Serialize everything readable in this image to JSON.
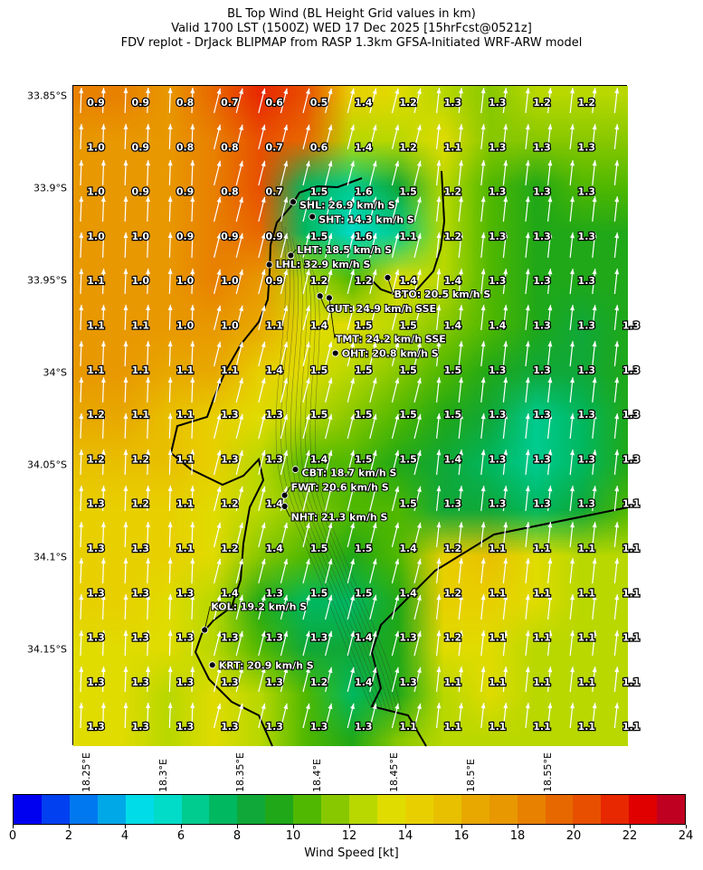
{
  "title": {
    "line1": "BL Top Wind (BL Height Grid values in km)",
    "line2": "Valid 1700 LST (1500Z) WED 17 Dec 2025 [15hrFcst@0521z]",
    "line3": "FDV replot - DrJack BLIPMAP from RASP 1.3km GFSA-Initiated WRF-ARW model"
  },
  "chart_data": {
    "type": "heatmap",
    "xlabel": "",
    "ylabel": "",
    "lat_ticks": [
      "33.85°S",
      "33.9°S",
      "33.95°S",
      "34°S",
      "34.05°S",
      "34.1°S",
      "34.15°S"
    ],
    "lat_values": [
      33.85,
      33.9,
      33.95,
      34.0,
      34.05,
      34.1,
      34.15
    ],
    "lon_ticks": [
      "18.25°E",
      "18.3°E",
      "18.35°E",
      "18.4°E",
      "18.45°E",
      "18.5°E",
      "18.55°E"
    ],
    "lon_values": [
      18.25,
      18.3,
      18.35,
      18.4,
      18.45,
      18.5,
      18.55
    ],
    "wind_direction": "S",
    "wind_speed_kt_grid": [
      [
        18,
        18,
        17,
        19,
        21,
        20,
        14,
        13,
        12,
        11,
        12,
        12,
        12
      ],
      [
        17,
        17,
        17,
        18,
        20,
        19,
        12,
        12,
        13,
        11,
        11,
        11,
        11
      ],
      [
        17,
        17,
        17,
        18,
        20,
        7,
        6,
        8,
        12,
        10,
        9,
        10,
        10
      ],
      [
        17,
        17,
        17,
        18,
        19,
        7,
        5,
        6,
        12,
        10,
        9,
        9,
        9
      ],
      [
        17,
        17,
        17,
        18,
        17,
        12,
        10,
        13,
        12,
        10,
        9,
        9,
        9
      ],
      [
        17,
        17,
        17,
        17,
        16,
        13,
        13,
        12,
        11,
        10,
        9,
        8,
        9
      ],
      [
        17,
        17,
        16,
        16,
        14,
        13,
        12,
        11,
        10,
        9,
        8,
        8,
        9
      ],
      [
        16,
        16,
        15,
        14,
        13,
        12,
        11,
        10,
        9,
        8,
        6,
        7,
        9
      ],
      [
        15,
        15,
        15,
        14,
        12,
        10,
        10,
        9,
        8,
        7,
        6,
        7,
        9
      ],
      [
        14,
        14,
        14,
        13,
        12,
        11,
        10,
        10,
        8,
        8,
        7,
        8,
        10
      ],
      [
        14,
        14,
        14,
        13,
        11,
        10,
        9,
        10,
        14,
        15,
        13,
        12,
        12
      ],
      [
        14,
        14,
        13,
        12,
        9,
        7,
        7,
        9,
        14,
        14,
        13,
        12,
        12
      ],
      [
        13,
        13,
        13,
        12,
        10,
        8,
        8,
        9,
        13,
        13,
        12,
        12,
        12
      ],
      [
        13,
        13,
        12,
        13,
        12,
        10,
        7,
        9,
        12,
        13,
        12,
        12,
        12
      ],
      [
        13,
        13,
        12,
        13,
        12,
        10,
        9,
        11,
        12,
        12,
        12,
        12,
        12
      ]
    ],
    "bl_height_km_grid": [
      [
        "0.9",
        "0.9",
        "0.8",
        "0.7",
        "0.6",
        "0.5",
        "1.4",
        "1.2",
        "1.3",
        "1.3",
        "1.2",
        "1.2",
        null
      ],
      [
        "1.0",
        "0.9",
        "0.8",
        "0.8",
        "0.7",
        "0.6",
        "1.4",
        "1.2",
        "1.1",
        "1.3",
        "1.3",
        "1.3",
        null
      ],
      [
        "1.0",
        "0.9",
        "0.9",
        "0.8",
        "0.7",
        "1.5",
        "1.6",
        "1.5",
        "1.2",
        "1.3",
        "1.3",
        "1.3",
        null
      ],
      [
        "1.0",
        "1.0",
        "0.9",
        "0.9",
        "0.9",
        "1.5",
        "1.6",
        "1.1",
        "1.2",
        "1.3",
        "1.3",
        "1.3",
        null
      ],
      [
        "1.1",
        "1.0",
        "1.0",
        "1.0",
        "0.9",
        "1.2",
        "1.2",
        "1.4",
        "1.4",
        "1.3",
        "1.3",
        "1.3",
        null
      ],
      [
        "1.1",
        "1.1",
        "1.0",
        "1.0",
        "1.1",
        "1.4",
        "1.5",
        "1.5",
        "1.4",
        "1.4",
        "1.3",
        "1.3",
        "1.3"
      ],
      [
        "1.1",
        "1.1",
        "1.1",
        "1.1",
        "1.4",
        "1.5",
        "1.5",
        "1.5",
        "1.5",
        "1.3",
        "1.3",
        "1.3",
        "1.3"
      ],
      [
        "1.2",
        "1.1",
        "1.1",
        "1.3",
        "1.3",
        "1.5",
        "1.5",
        "1.5",
        "1.5",
        "1.3",
        "1.3",
        "1.3",
        "1.3"
      ],
      [
        "1.2",
        "1.2",
        "1.1",
        "1.3",
        "1.3",
        "1.4",
        "1.5",
        "1.5",
        "1.4",
        "1.3",
        "1.3",
        "1.3",
        "1.3"
      ],
      [
        "1.3",
        "1.2",
        "1.1",
        "1.2",
        "1.4",
        null,
        null,
        "1.5",
        "1.3",
        "1.3",
        "1.3",
        "1.3",
        "1.1"
      ],
      [
        "1.3",
        "1.3",
        "1.1",
        "1.2",
        "1.4",
        "1.5",
        "1.5",
        "1.4",
        "1.2",
        "1.1",
        "1.1",
        "1.1",
        "1.1"
      ],
      [
        "1.3",
        "1.3",
        "1.3",
        "1.4",
        "1.3",
        "1.5",
        "1.5",
        "1.4",
        "1.2",
        "1.1",
        "1.1",
        "1.1",
        "1.1"
      ],
      [
        "1.3",
        "1.3",
        "1.3",
        "1.3",
        "1.3",
        "1.3",
        "1.4",
        "1.3",
        "1.2",
        "1.1",
        "1.1",
        "1.1",
        "1.1"
      ],
      [
        "1.3",
        "1.3",
        "1.3",
        "1.3",
        "1.3",
        "1.2",
        "1.4",
        "1.3",
        "1.1",
        "1.1",
        "1.1",
        "1.1",
        "1.1"
      ],
      [
        "1.3",
        "1.3",
        "1.3",
        "1.3",
        "1.3",
        "1.3",
        "1.3",
        "1.1",
        "1.1",
        "1.1",
        "1.1",
        "1.1",
        "1.1"
      ]
    ],
    "stations": [
      {
        "label": "SHL: 26.9 km/h S",
        "lon": 18.3835,
        "lat": 33.907
      },
      {
        "label": "SHT: 14.3 km/h S",
        "lon": 18.396,
        "lat": 33.915
      },
      {
        "label": "LHT: 18.5 km/h S",
        "lon": 18.382,
        "lat": 33.936
      },
      {
        "label": "LHL: 32.9 km/h S",
        "lon": 18.368,
        "lat": 33.941
      },
      {
        "label": "BTO: 20.5 km/h S",
        "lon": 18.445,
        "lat": 33.948
      },
      {
        "label": "GUT: 24.9 km/h SSE",
        "lon": 18.401,
        "lat": 33.958
      },
      {
        "label": "TMT: 24.2 km/h SSE",
        "lon": 18.407,
        "lat": 33.959
      },
      {
        "label": "OHT: 20.8 km/h S",
        "lon": 18.411,
        "lat": 33.989
      },
      {
        "label": "CBT: 18.7 km/h S",
        "lon": 18.385,
        "lat": 34.052
      },
      {
        "label": "FWT: 20.6 km/h S",
        "lon": 18.378,
        "lat": 34.066
      },
      {
        "label": "NHT: 21.3 km/h S",
        "lon": 18.378,
        "lat": 34.072
      },
      {
        "label": "KOL: 19.2 km/h S",
        "lon": 18.326,
        "lat": 34.139
      },
      {
        "label": "KRT: 20.9 km/h S",
        "lon": 18.331,
        "lat": 34.158
      }
    ],
    "colorbar": {
      "label": "Wind Speed [kt]",
      "range": [
        0,
        24
      ],
      "tick_labels": [
        "0",
        "2",
        "4",
        "6",
        "8",
        "10",
        "12",
        "14",
        "16",
        "18",
        "20",
        "22",
        "24"
      ],
      "colors": [
        "#0000f0",
        "#0040f0",
        "#0078f0",
        "#00a8e8",
        "#00dce8",
        "#00dcc8",
        "#00cc90",
        "#00b860",
        "#10a838",
        "#20a818",
        "#50b800",
        "#88c800",
        "#b8d800",
        "#e0dc00",
        "#e8d000",
        "#e8c000",
        "#e8a800",
        "#e89800",
        "#e88000",
        "#e86800",
        "#e85000",
        "#e82800",
        "#e00000",
        "#c00020"
      ]
    }
  }
}
